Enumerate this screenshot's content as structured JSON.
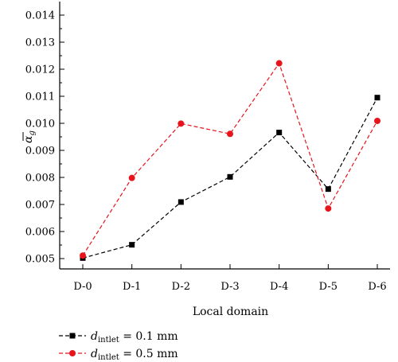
{
  "chart_data": {
    "type": "line",
    "title": "",
    "xlabel": "Local domain",
    "ylabel_base": "α",
    "ylabel_sub": "g",
    "categories": [
      "D-0",
      "D-1",
      "D-2",
      "D-3",
      "D-4",
      "D-5",
      "D-6"
    ],
    "ylim": [
      0.0048,
      0.0145
    ],
    "yticks": [
      "0.005",
      "0.006",
      "0.007",
      "0.008",
      "0.009",
      "0.010",
      "0.011",
      "0.012",
      "0.013",
      "0.014"
    ],
    "grid": false,
    "legend_position": "bottom-left",
    "series": [
      {
        "name": "d_intlet = 0.1 mm",
        "legend": {
          "var": "d",
          "sub": "intlet",
          "rest": " = 0.1 mm"
        },
        "marker": "square",
        "color": "#000000",
        "values": [
          0.00502,
          0.00551,
          0.00709,
          0.00802,
          0.00966,
          0.00757,
          0.01095
        ]
      },
      {
        "name": "d_intlet = 0.5 mm",
        "legend": {
          "var": "d",
          "sub": "intlet",
          "rest": " = 0.5 mm"
        },
        "marker": "circle",
        "color": "#e8141c",
        "values": [
          0.00511,
          0.00798,
          0.00999,
          0.00961,
          0.01222,
          0.00685,
          0.01009
        ]
      }
    ]
  }
}
